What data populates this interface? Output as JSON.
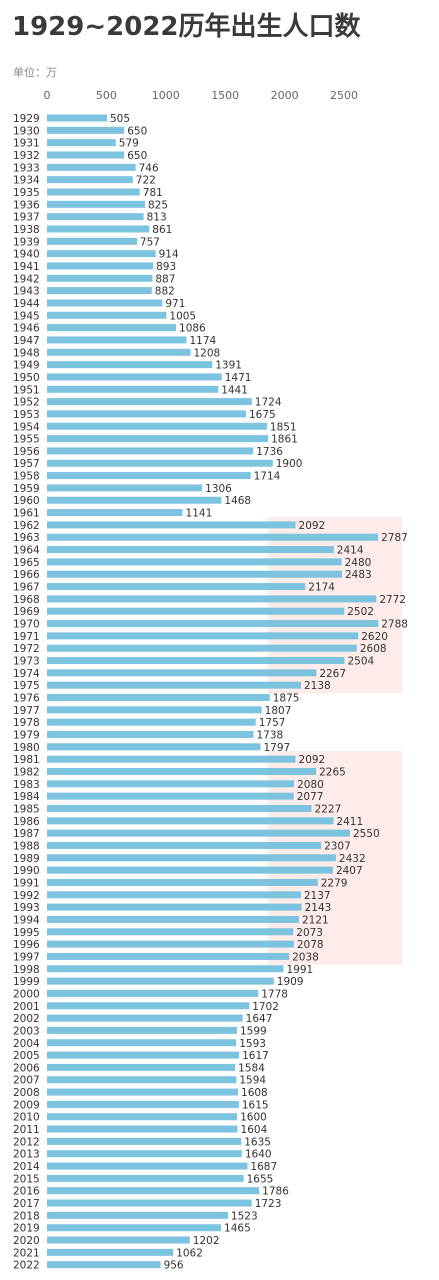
{
  "title": "1929~2022历年出生人口数",
  "unit_label": "单位：万",
  "colors": {
    "bar": "#7cc3e0",
    "highlight": "#fde6e3",
    "text": "#333333",
    "axis_text": "#666666"
  },
  "chart_data": {
    "type": "bar",
    "orientation": "horizontal",
    "xlim": [
      0,
      2900
    ],
    "xticks": [
      0,
      500,
      1000,
      1500,
      2000,
      2500
    ],
    "categories": [
      "1929",
      "1930",
      "1931",
      "1932",
      "1933",
      "1934",
      "1935",
      "1936",
      "1937",
      "1938",
      "1939",
      "1940",
      "1941",
      "1942",
      "1943",
      "1944",
      "1945",
      "1946",
      "1947",
      "1948",
      "1949",
      "1950",
      "1951",
      "1952",
      "1953",
      "1954",
      "1955",
      "1956",
      "1957",
      "1958",
      "1959",
      "1960",
      "1961",
      "1962",
      "1963",
      "1964",
      "1965",
      "1966",
      "1967",
      "1968",
      "1969",
      "1970",
      "1971",
      "1972",
      "1973",
      "1974",
      "1975",
      "1976",
      "1977",
      "1978",
      "1979",
      "1980",
      "1981",
      "1982",
      "1983",
      "1984",
      "1985",
      "1986",
      "1987",
      "1988",
      "1989",
      "1990",
      "1991",
      "1992",
      "1993",
      "1994",
      "1995",
      "1996",
      "1997",
      "1998",
      "1999",
      "2000",
      "2001",
      "2002",
      "2003",
      "2004",
      "2005",
      "2006",
      "2007",
      "2008",
      "2009",
      "2010",
      "2011",
      "2012",
      "2013",
      "2014",
      "2015",
      "2016",
      "2017",
      "2018",
      "2019",
      "2020",
      "2021",
      "2022"
    ],
    "values": [
      505,
      650,
      579,
      650,
      746,
      722,
      781,
      825,
      813,
      861,
      757,
      914,
      893,
      887,
      882,
      971,
      1005,
      1086,
      1174,
      1208,
      1391,
      1471,
      1441,
      1724,
      1675,
      1851,
      1861,
      1736,
      1900,
      1714,
      1306,
      1468,
      1141,
      2092,
      2787,
      2414,
      2480,
      2483,
      2174,
      2772,
      2502,
      2788,
      2620,
      2608,
      2504,
      2267,
      2138,
      1875,
      1807,
      1757,
      1738,
      1797,
      2092,
      2265,
      2080,
      2077,
      2227,
      2411,
      2550,
      2307,
      2432,
      2407,
      2279,
      2137,
      2143,
      2121,
      2073,
      2078,
      2038,
      1991,
      1909,
      1778,
      1702,
      1647,
      1599,
      1593,
      1617,
      1584,
      1594,
      1608,
      1615,
      1600,
      1604,
      1635,
      1640,
      1687,
      1655,
      1786,
      1723,
      1523,
      1465,
      1202,
      1062,
      956
    ],
    "highlight_ranges": [
      [
        "1962",
        "1975"
      ],
      [
        "1981",
        "1997"
      ]
    ]
  }
}
